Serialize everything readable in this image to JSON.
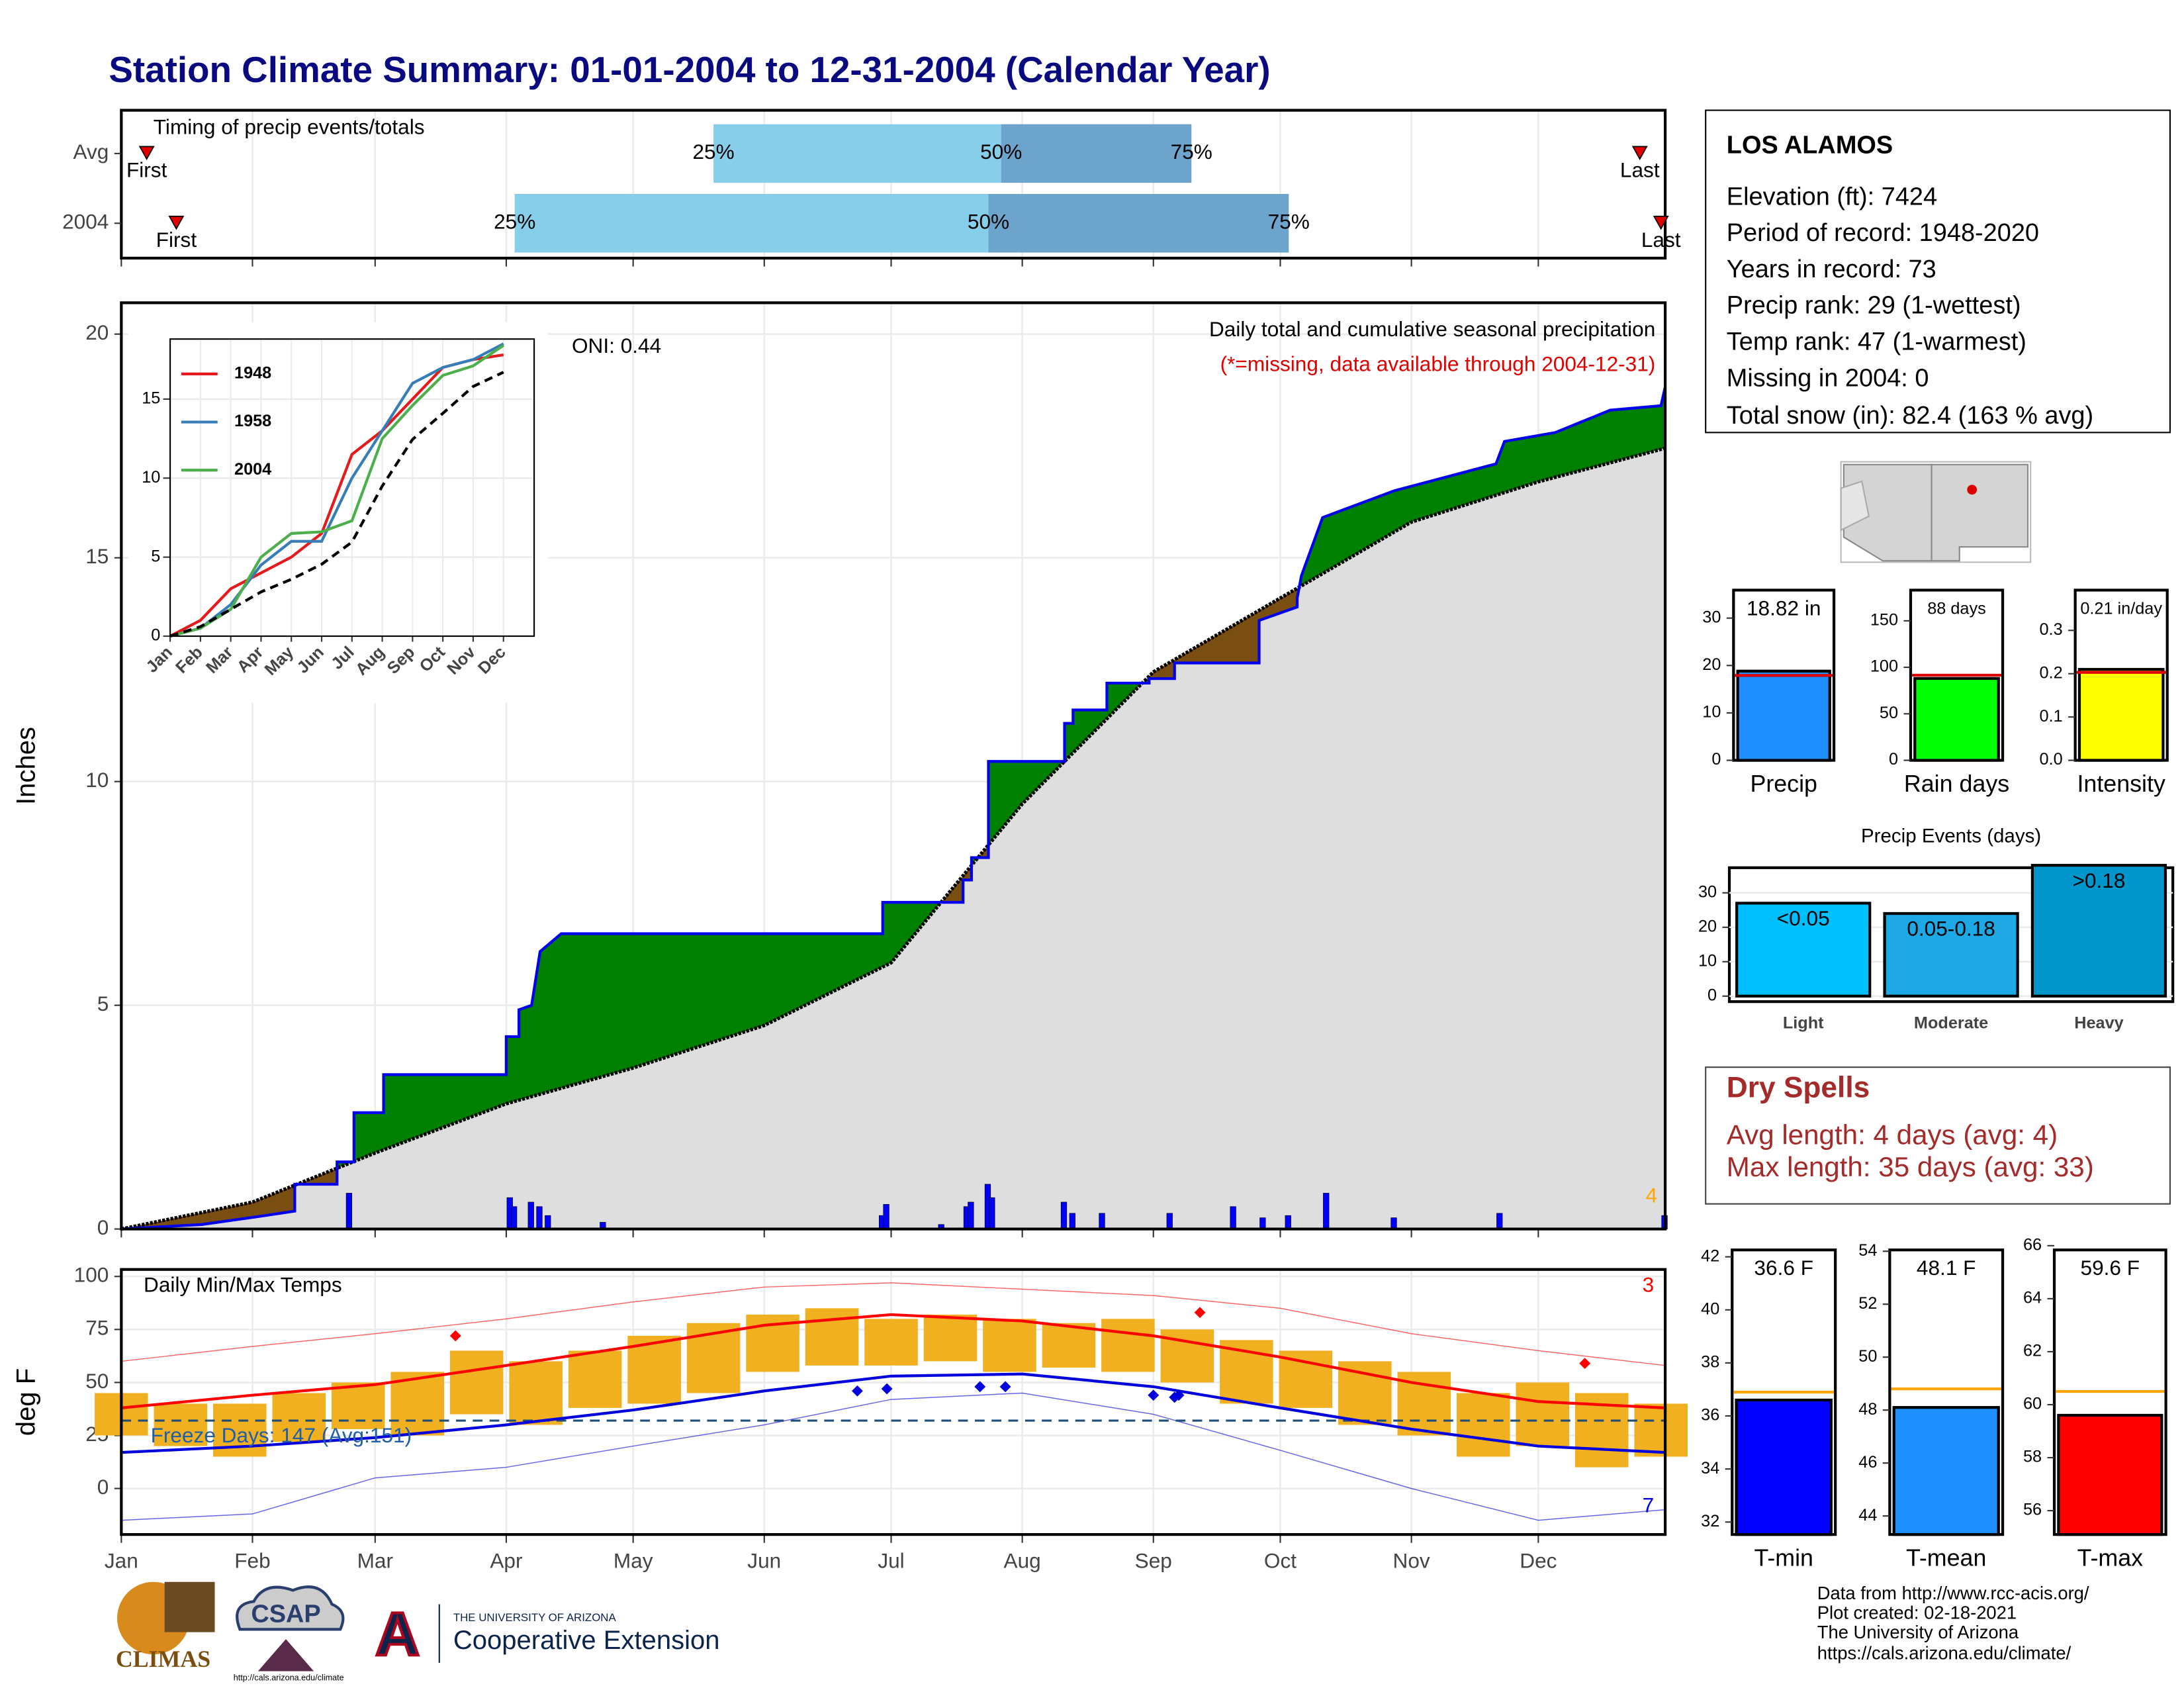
{
  "title": "Station Climate Summary: 01-01-2004 to 12-31-2004 (Calendar Year)",
  "station": {
    "name": "LOS ALAMOS",
    "lines": [
      "Elevation (ft): 7424",
      "Period of record: 1948-2020",
      "Years in record: 73",
      "Precip rank: 29 (1-wettest)",
      "Temp rank: 47 (1-warmest)",
      "Missing in 2004: 0",
      "Total snow (in): 82.4 (163 % avg)"
    ]
  },
  "dry_spells": {
    "title": "Dry Spells",
    "lines": [
      "Avg length: 4 days (avg: 4)",
      "Max length: 35 days (avg: 33)"
    ]
  },
  "footer": [
    "Data from http://www.rcc-acis.org/",
    "Plot created: 02-18-2021",
    "The University of Arizona",
    "https://cals.arizona.edu/climate/"
  ],
  "logos": {
    "climas": "CLIMAS",
    "csap": "CSAP",
    "csap_url": "http://cals.arizona.edu/climate",
    "ua": "THE UNIVERSITY OF ARIZONA",
    "coop": "Cooperative Extension",
    "a": "A"
  },
  "chart_data": [
    {
      "type": "timing",
      "title": "Timing of precip events/totals",
      "categories": [
        "Avg",
        "2004"
      ],
      "xlim": [
        1,
        366
      ],
      "xticks": [
        1,
        32,
        61,
        92,
        122,
        153,
        183,
        214,
        245,
        275,
        306,
        336
      ],
      "grid": true,
      "first": [
        7,
        14
      ],
      "last": [
        360,
        365
      ],
      "first_label": "First",
      "last_label": "Last",
      "quartiles": [
        [
          141,
          209,
          254
        ],
        [
          94,
          206,
          277
        ]
      ],
      "quartile_labels": [
        "25%",
        "50%",
        "75%"
      ],
      "colors": [
        "#87ceeb",
        "#6ca4cc"
      ],
      "marker_color": "#e00000"
    },
    {
      "type": "cumulative",
      "ylabel": "Inches",
      "oni": "ONI: 0.44",
      "caption": "Daily total and cumulative seasonal precipitation",
      "missing_note": "(*=missing, data available through 2004-12-31)",
      "snow_count": "4",
      "xlim": [
        1,
        366
      ],
      "xticks": [
        1,
        32,
        61,
        92,
        122,
        153,
        183,
        214,
        245,
        275,
        306,
        336
      ],
      "ylim": [
        0,
        20.7
      ],
      "yticks": [
        0,
        5,
        10,
        15,
        20
      ],
      "grid": true,
      "cumulative": {
        "x": [
          1,
          20,
          35,
          42,
          42,
          52,
          52,
          56,
          56,
          63,
          63,
          92,
          92,
          95,
          95,
          98,
          100,
          105,
          181,
          181,
          200,
          200,
          202,
          202,
          206,
          206,
          224,
          224,
          226,
          226,
          234,
          234,
          244,
          244,
          250,
          250,
          270,
          270,
          279,
          279,
          280,
          285,
          302,
          326,
          328,
          340,
          353,
          365,
          366
        ],
        "values": [
          0,
          0.1,
          0.3,
          0.4,
          1.0,
          1.0,
          1.5,
          1.5,
          2.6,
          2.6,
          3.45,
          3.45,
          4.3,
          4.3,
          4.9,
          5.0,
          6.2,
          6.6,
          6.6,
          7.3,
          7.3,
          7.8,
          7.8,
          8.3,
          8.3,
          10.45,
          10.45,
          11.3,
          11.3,
          11.6,
          11.6,
          12.2,
          12.2,
          12.3,
          12.3,
          12.65,
          12.65,
          13.6,
          13.9,
          14.1,
          14.6,
          15.9,
          16.5,
          17.1,
          17.6,
          17.8,
          18.3,
          18.4,
          18.82
        ]
      },
      "average": {
        "x": [
          1,
          32,
          61,
          92,
          122,
          153,
          183,
          214,
          245,
          275,
          306,
          336,
          366
        ],
        "values": [
          0,
          0.6,
          1.7,
          2.8,
          3.6,
          4.55,
          5.95,
          9.5,
          12.45,
          14.1,
          15.8,
          16.7,
          17.45
        ]
      },
      "daily": {
        "x": [
          55,
          93,
          94,
          98,
          100,
          102,
          115,
          181,
          182,
          195,
          201,
          202,
          206,
          207,
          224,
          226,
          233,
          249,
          264,
          271,
          277,
          286,
          302,
          327,
          366
        ],
        "values": [
          0.8,
          0.7,
          0.5,
          0.6,
          0.5,
          0.3,
          0.15,
          0.3,
          0.55,
          0.1,
          0.5,
          0.6,
          1.0,
          0.7,
          0.6,
          0.35,
          0.35,
          0.35,
          0.5,
          0.25,
          0.3,
          0.8,
          0.25,
          0.35,
          0.3
        ]
      },
      "colors": {
        "above": "#008000",
        "below": "#7a4e10",
        "base": "#dedede",
        "line": "#0000ee",
        "average": "#000000",
        "daily": "#0000ff",
        "note": "#e00000",
        "snow": "#ffa500"
      }
    },
    {
      "type": "line",
      "categories": [
        "Jan",
        "Feb",
        "Mar",
        "Apr",
        "May",
        "Jun",
        "Jul",
        "Aug",
        "Sep",
        "Oct",
        "Nov",
        "Dec"
      ],
      "ylim": [
        0,
        18.8
      ],
      "yticks": [
        0,
        5,
        10,
        15
      ],
      "legend": "top-left",
      "series": [
        {
          "name": "1948",
          "color": "#e41a1c",
          "values": [
            0,
            1,
            3,
            4,
            5,
            6.5,
            11.5,
            13,
            15,
            17,
            17.5,
            17.8
          ]
        },
        {
          "name": "1958",
          "color": "#377eb8",
          "values": [
            0,
            0.5,
            2,
            4.5,
            6,
            6,
            10,
            13,
            16,
            17,
            17.5,
            18.5
          ]
        },
        {
          "name": "2004",
          "color": "#4daf4a",
          "values": [
            0,
            0.5,
            1.7,
            5,
            6.5,
            6.6,
            7.3,
            12.5,
            14.6,
            16.5,
            17.1,
            18.4
          ]
        }
      ],
      "average": {
        "color": "#000000",
        "values": [
          0,
          0.6,
          1.7,
          2.8,
          3.6,
          4.55,
          5.95,
          9.5,
          12.45,
          14.1,
          15.8,
          16.7
        ]
      }
    },
    {
      "type": "gauge",
      "label": "Precip",
      "values": [
        18.82
      ],
      "value_labels": [
        "18.82 in"
      ],
      "average": 17.9,
      "ylim": [
        0,
        35.9
      ],
      "yticks": [
        0,
        10,
        20,
        30
      ],
      "color": "#1e90ff",
      "average_color": "#e00000"
    },
    {
      "type": "gauge",
      "label": "Rain days",
      "values": [
        88
      ],
      "value_labels": [
        "88 days"
      ],
      "average": 91.5,
      "ylim": [
        0,
        183
      ],
      "yticks": [
        0,
        50,
        100,
        150
      ],
      "color": "#00ff00",
      "average_color": "#e00000"
    },
    {
      "type": "gauge",
      "label": "Intensity",
      "values": [
        0.21
      ],
      "value_labels": [
        "0.21 in/day"
      ],
      "average": 0.203,
      "ylim": [
        0,
        0.393
      ],
      "yticks": [
        {
          "value": 0,
          "label": "0.0"
        },
        0.1,
        0.2,
        0.3
      ],
      "color": "#ffff00",
      "average_color": "#e00000"
    },
    {
      "type": "bar",
      "title": "Precip Events (days)",
      "categories": [
        "Light",
        "Moderate",
        "Heavy"
      ],
      "bin_labels": [
        "<0.05",
        "0.05-0.18",
        ">0.18"
      ],
      "values": [
        27,
        24,
        38
      ],
      "ylim": [
        -1.6,
        37.3
      ],
      "yticks": [
        0,
        10,
        20,
        30
      ],
      "colors": [
        "#00bfff",
        "#1ea8e6",
        "#0096cc"
      ],
      "grid": true
    },
    {
      "type": "temperature",
      "title": "Daily Min/Max Temps",
      "ylabel": "deg F",
      "freeze_note": "Freeze Days: 147 (Avg:151)",
      "record_high_count": 3,
      "record_low_count": 7,
      "freeze_line": 32,
      "xlim": [
        1,
        366
      ],
      "ylim": [
        -21.7,
        103.3
      ],
      "yticks": [
        0,
        25,
        50,
        75,
        100
      ],
      "grid": true,
      "xticks": [
        {
          "value": 1,
          "label": "Jan"
        },
        {
          "value": 32,
          "label": "Feb"
        },
        {
          "value": 61,
          "label": "Mar"
        },
        {
          "value": 92,
          "label": "Apr"
        },
        {
          "value": 122,
          "label": "May"
        },
        {
          "value": 153,
          "label": "Jun"
        },
        {
          "value": 183,
          "label": "Jul"
        },
        {
          "value": 214,
          "label": "Aug"
        },
        {
          "value": 245,
          "label": "Sep"
        },
        {
          "value": 275,
          "label": "Oct"
        },
        {
          "value": 306,
          "label": "Nov"
        },
        {
          "value": 336,
          "label": "Dec"
        }
      ],
      "daily": {
        "x": [
          1,
          15,
          29,
          43,
          57,
          71,
          85,
          99,
          113,
          127,
          141,
          155,
          169,
          183,
          197,
          211,
          225,
          239,
          253,
          267,
          281,
          295,
          309,
          323,
          337,
          351,
          365
        ],
        "max": [
          45,
          40,
          40,
          45,
          50,
          55,
          65,
          60,
          65,
          72,
          78,
          82,
          85,
          80,
          82,
          80,
          78,
          80,
          75,
          70,
          65,
          60,
          55,
          45,
          50,
          45,
          40
        ],
        "min": [
          25,
          20,
          15,
          22,
          28,
          25,
          35,
          30,
          38,
          40,
          45,
          55,
          58,
          58,
          60,
          55,
          57,
          55,
          50,
          40,
          38,
          30,
          25,
          15,
          20,
          10,
          15
        ]
      },
      "normals": {
        "x": [
          1,
          32,
          61,
          92,
          122,
          153,
          183,
          214,
          245,
          275,
          306,
          336,
          366
        ],
        "max": [
          38,
          44,
          49,
          58,
          67,
          77,
          82,
          79,
          72,
          62,
          50,
          41,
          38
        ],
        "min": [
          17,
          20,
          24,
          30,
          37,
          46,
          53,
          54,
          48,
          38,
          28,
          20,
          17
        ],
        "record_max": [
          60,
          67,
          73,
          80,
          88,
          95,
          97,
          94,
          91,
          85,
          73,
          65,
          58
        ],
        "record_min": [
          -15,
          -12,
          5,
          10,
          20,
          30,
          42,
          45,
          35,
          18,
          0,
          -15,
          -10
        ]
      },
      "record_highs": {
        "x": [
          80,
          256,
          347
        ],
        "values": [
          72,
          83,
          59
        ]
      },
      "record_lows": {
        "x": [
          175,
          182,
          204,
          210,
          245,
          250,
          251
        ],
        "values": [
          46,
          47,
          48,
          48,
          44,
          43,
          44
        ]
      },
      "colors": {
        "daily": "#f0b020",
        "max": "#ff0000",
        "min": "#0000dd",
        "freeze": "#1f4e79",
        "note": "#1f5fa8"
      }
    },
    {
      "type": "gauge",
      "label": "T-min",
      "values": [
        36.6
      ],
      "value_labels": [
        "36.6 F"
      ],
      "average": 36.9,
      "ylim": [
        31.53,
        42.26
      ],
      "yticks": [
        32,
        34,
        36,
        38,
        40,
        42
      ],
      "color": "#0000ff",
      "average_color": "#ffa500"
    },
    {
      "type": "gauge",
      "label": "T-mean",
      "values": [
        48.1
      ],
      "value_labels": [
        "48.1 F"
      ],
      "average": 48.8,
      "ylim": [
        43.3,
        54.05
      ],
      "yticks": [
        44,
        46,
        48,
        50,
        52,
        54
      ],
      "color": "#1e90ff",
      "average_color": "#ffa500"
    },
    {
      "type": "gauge",
      "label": "T-max",
      "values": [
        59.6
      ],
      "value_labels": [
        "59.6 F"
      ],
      "average": 60.5,
      "ylim": [
        55.1,
        65.84
      ],
      "yticks": [
        56,
        58,
        60,
        62,
        64,
        66
      ],
      "color": "#ff0000",
      "average_color": "#ffa500"
    }
  ]
}
